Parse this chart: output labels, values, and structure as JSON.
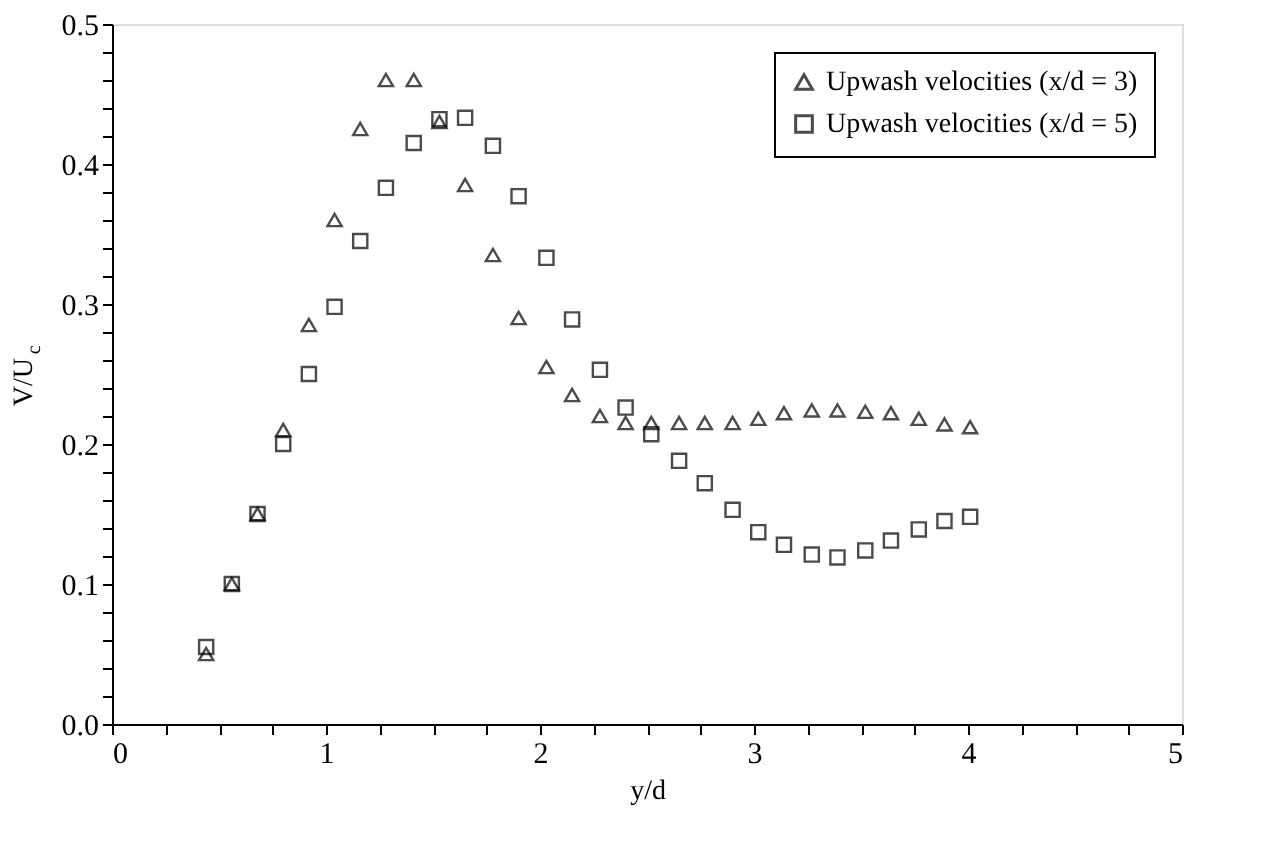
{
  "chart_data": {
    "type": "scatter",
    "xlabel": "y/d",
    "ylabel": "V/U$_{c}$",
    "xlim": [
      0,
      5
    ],
    "ylim": [
      0,
      0.5
    ],
    "xticks": [
      0,
      {
        "value": 0.25,
        "label": null
      },
      {
        "value": 0.5,
        "label": null
      },
      {
        "value": 0.75,
        "label": null
      },
      1,
      {
        "value": 1.25,
        "label": null
      },
      {
        "value": 1.5,
        "label": null
      },
      {
        "value": 1.75,
        "label": null
      },
      2,
      {
        "value": 2.25,
        "label": null
      },
      {
        "value": 2.5,
        "label": null
      },
      {
        "value": 2.75,
        "label": null
      },
      3,
      {
        "value": 3.25,
        "label": null
      },
      {
        "value": 3.5,
        "label": null
      },
      {
        "value": 3.75,
        "label": null
      },
      4,
      {
        "value": 4.25,
        "label": null
      },
      {
        "value": 4.5,
        "label": null
      },
      {
        "value": 4.75,
        "label": null
      },
      5
    ],
    "yticks": [
      {
        "value": 0,
        "label": "0.0"
      },
      {
        "value": 0.02,
        "label": null
      },
      {
        "value": 0.04,
        "label": null
      },
      {
        "value": 0.06,
        "label": null
      },
      {
        "value": 0.08,
        "label": null
      },
      0.1,
      {
        "value": 0.12,
        "label": null
      },
      {
        "value": 0.14,
        "label": null
      },
      {
        "value": 0.16,
        "label": null
      },
      {
        "value": 0.18,
        "label": null
      },
      0.2,
      {
        "value": 0.22,
        "label": null
      },
      {
        "value": 0.24,
        "label": null
      },
      {
        "value": 0.26,
        "label": null
      },
      {
        "value": 0.28,
        "label": null
      },
      0.3,
      {
        "value": 0.32,
        "label": null
      },
      {
        "value": 0.34,
        "label": null
      },
      {
        "value": 0.36,
        "label": null
      },
      {
        "value": 0.38,
        "label": null
      },
      0.4,
      {
        "value": 0.42,
        "label": null
      },
      {
        "value": 0.44,
        "label": null
      },
      {
        "value": 0.46,
        "label": null
      },
      {
        "value": 0.48,
        "label": null
      },
      0.5
    ],
    "grid": false,
    "legend": "top right",
    "x": [
      0.44,
      0.56,
      0.68,
      0.8,
      0.92,
      1.04,
      1.16,
      1.28,
      1.41,
      1.53,
      1.65,
      1.78,
      1.9,
      2.03,
      2.15,
      2.28,
      2.4,
      2.52,
      2.65,
      2.77,
      2.9,
      3.02,
      3.14,
      3.27,
      3.39,
      3.52,
      3.64,
      3.77,
      3.89,
      4.01
    ],
    "series": [
      {
        "name": "Upwash velocities (x/d = 3)",
        "color": "#000000",
        "marker": "triangle",
        "values": [
          0.05,
          0.1,
          0.15,
          0.21,
          0.285,
          0.36,
          0.425,
          0.46,
          0.46,
          0.43,
          0.385,
          0.335,
          0.29,
          0.255,
          0.235,
          0.22,
          0.215,
          0.215,
          0.215,
          0.215,
          0.215,
          0.218,
          0.222,
          0.224,
          0.224,
          0.223,
          0.222,
          0.218,
          0.214,
          0.212
        ]
      },
      {
        "name": "Upwash velocities (x/d = 5)",
        "color": "#000000",
        "marker": "square",
        "values": [
          0.055,
          0.1,
          0.15,
          0.2,
          0.25,
          0.298,
          0.345,
          0.383,
          0.415,
          0.432,
          0.433,
          0.413,
          0.377,
          0.333,
          0.289,
          0.253,
          0.226,
          0.207,
          0.188,
          0.172,
          0.153,
          0.137,
          0.128,
          0.121,
          0.119,
          0.124,
          0.131,
          0.139,
          0.145,
          0.148
        ]
      }
    ]
  }
}
